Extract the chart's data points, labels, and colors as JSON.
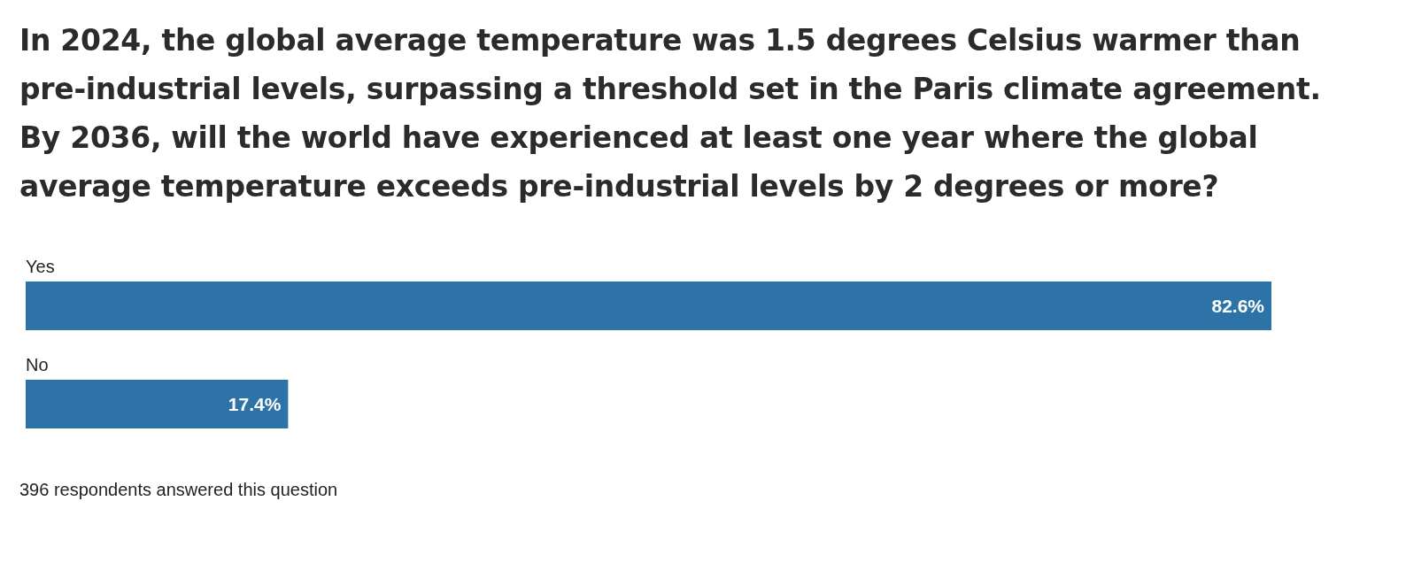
{
  "chart_data": {
    "type": "bar",
    "orientation": "horizontal",
    "title": "In 2024, the global average temperature was 1.5 degrees Celsius warmer than pre-industrial levels, surpassing a threshold set in the Paris climate agreement. By 2036, will the world have experienced at least one year where the global average temperature exceeds pre-industrial levels by 2 degrees or more?",
    "categories": [
      "Yes",
      "No"
    ],
    "values": [
      82.6,
      17.4
    ],
    "value_labels": [
      "82.6%",
      "17.4%"
    ],
    "color": "#2e73a8",
    "annotations": [
      "396 respondents answered this question"
    ]
  }
}
